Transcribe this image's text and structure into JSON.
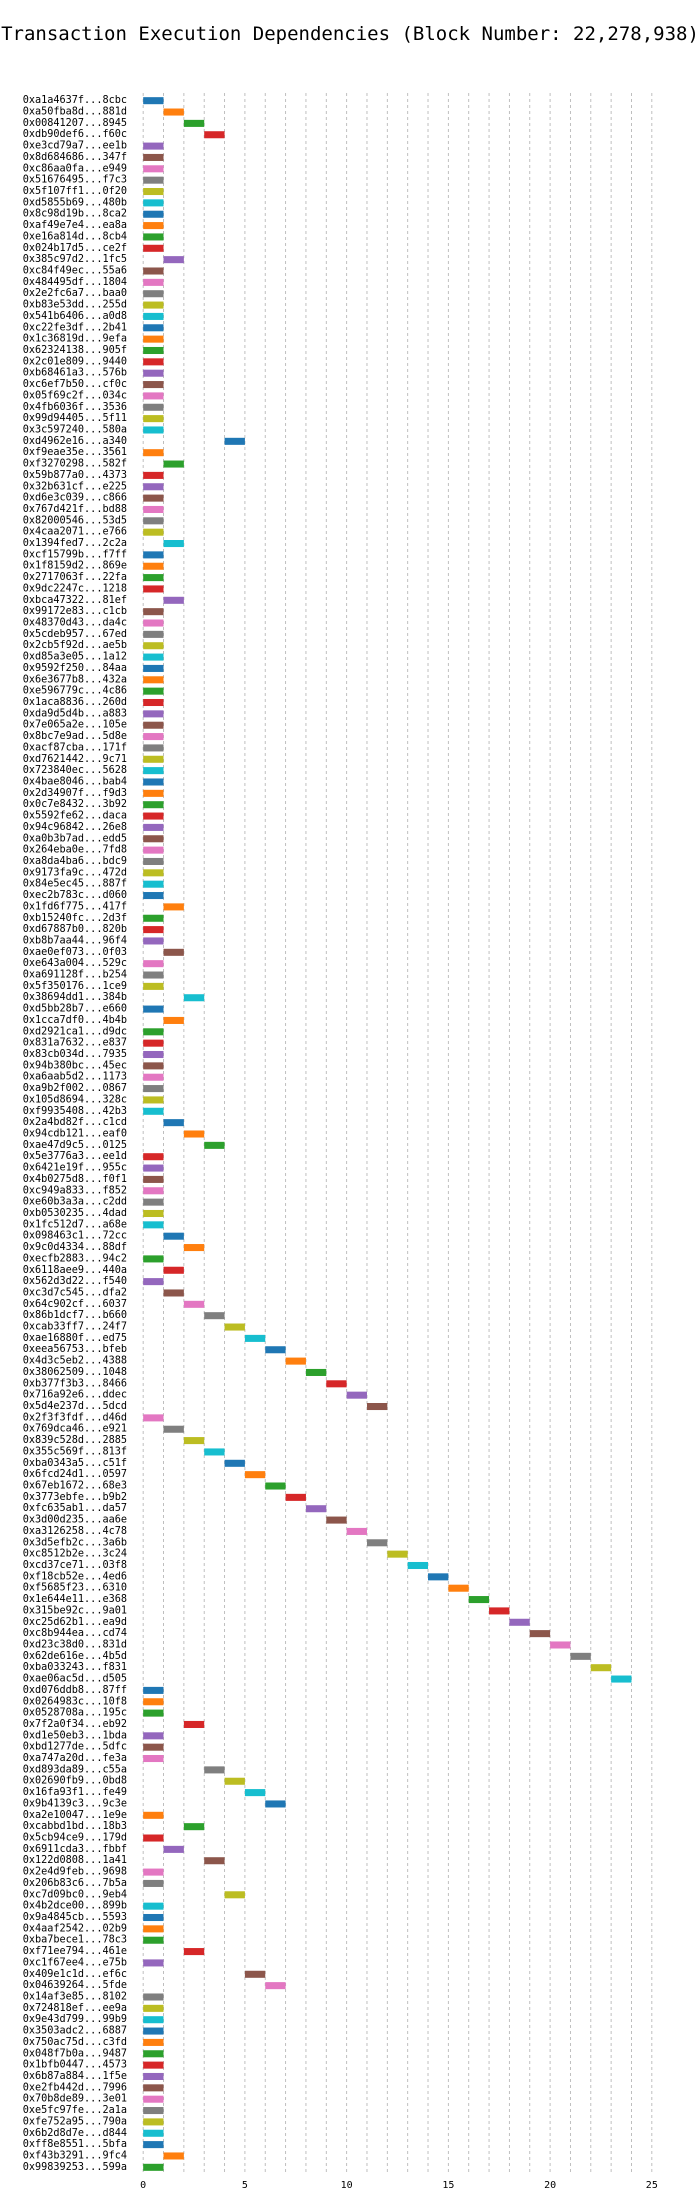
{
  "chart_data": {
    "type": "bar",
    "subtype": "horizontal-gantt",
    "title": "Transaction Execution Dependencies (Block Number: 22,278,938)",
    "xlabel": "",
    "ylabel": "",
    "xlim": [
      -0.5,
      25.5
    ],
    "xticks": [
      0,
      5,
      10,
      15,
      20,
      25
    ],
    "grid": true,
    "bar_duration": 1,
    "palette": [
      "#1f77b4",
      "#ff7f0e",
      "#2ca02c",
      "#d62728",
      "#9467bd",
      "#8c564b",
      "#e377c2",
      "#7f7f7f",
      "#bcbd22",
      "#17becf"
    ],
    "transactions": [
      {
        "label": "0xa1a4637f...8cbc",
        "start": 0
      },
      {
        "label": "0xa50fba8d...881d",
        "start": 1
      },
      {
        "label": "0x00841207...8945",
        "start": 2
      },
      {
        "label": "0xdb90def6...f60c",
        "start": 3
      },
      {
        "label": "0xe3cd79a7...ee1b",
        "start": 0
      },
      {
        "label": "0x8d684686...347f",
        "start": 0
      },
      {
        "label": "0xc86aa0fa...e949",
        "start": 0
      },
      {
        "label": "0x51676495...f7c3",
        "start": 0
      },
      {
        "label": "0x5f107ff1...0f20",
        "start": 0
      },
      {
        "label": "0xd5855b69...480b",
        "start": 0
      },
      {
        "label": "0x8c98d19b...8ca2",
        "start": 0
      },
      {
        "label": "0xaf49e7e4...ea8a",
        "start": 0
      },
      {
        "label": "0xe16a814d...8cb4",
        "start": 0
      },
      {
        "label": "0x024b17d5...ce2f",
        "start": 0
      },
      {
        "label": "0x385c97d2...1fc5",
        "start": 1
      },
      {
        "label": "0xc84f49ec...55a6",
        "start": 0
      },
      {
        "label": "0x484495df...1804",
        "start": 0
      },
      {
        "label": "0x2e2fc6a7...baa0",
        "start": 0
      },
      {
        "label": "0xb83e53dd...255d",
        "start": 0
      },
      {
        "label": "0x541b6406...a0d8",
        "start": 0
      },
      {
        "label": "0xc22fe3df...2b41",
        "start": 0
      },
      {
        "label": "0x1c36819d...9efa",
        "start": 0
      },
      {
        "label": "0x62324138...905f",
        "start": 0
      },
      {
        "label": "0x2c01e809...9440",
        "start": 0
      },
      {
        "label": "0xb68461a3...576b",
        "start": 0
      },
      {
        "label": "0xc6ef7b50...cf0c",
        "start": 0
      },
      {
        "label": "0x05f69c2f...034c",
        "start": 0
      },
      {
        "label": "0x4fb6036f...3536",
        "start": 0
      },
      {
        "label": "0x99d94405...5f11",
        "start": 0
      },
      {
        "label": "0x3c597240...580a",
        "start": 0
      },
      {
        "label": "0xd4962e16...a340",
        "start": 4
      },
      {
        "label": "0xf9eae35e...3561",
        "start": 0
      },
      {
        "label": "0xf3270298...582f",
        "start": 1
      },
      {
        "label": "0x59b877a0...4373",
        "start": 0
      },
      {
        "label": "0x32b631cf...e225",
        "start": 0
      },
      {
        "label": "0xd6e3c039...c866",
        "start": 0
      },
      {
        "label": "0x767d421f...bd88",
        "start": 0
      },
      {
        "label": "0x82000546...53d5",
        "start": 0
      },
      {
        "label": "0x4caa2071...e766",
        "start": 0
      },
      {
        "label": "0x1394fed7...2c2a",
        "start": 1
      },
      {
        "label": "0xcf15799b...f7ff",
        "start": 0
      },
      {
        "label": "0x1f8159d2...869e",
        "start": 0
      },
      {
        "label": "0x2717063f...22fa",
        "start": 0
      },
      {
        "label": "0x9dc2247c...1218",
        "start": 0
      },
      {
        "label": "0xbca47322...81ef",
        "start": 1
      },
      {
        "label": "0x99172e83...c1cb",
        "start": 0
      },
      {
        "label": "0x48370d43...da4c",
        "start": 0
      },
      {
        "label": "0x5cdeb957...67ed",
        "start": 0
      },
      {
        "label": "0x2cb5f92d...ae5b",
        "start": 0
      },
      {
        "label": "0xd85a3e05...1a12",
        "start": 0
      },
      {
        "label": "0x9592f250...84aa",
        "start": 0
      },
      {
        "label": "0x6e3677b8...432a",
        "start": 0
      },
      {
        "label": "0xe596779c...4c86",
        "start": 0
      },
      {
        "label": "0x1aca8836...260d",
        "start": 0
      },
      {
        "label": "0xda9d5d4b...a883",
        "start": 0
      },
      {
        "label": "0x7e065a2e...105e",
        "start": 0
      },
      {
        "label": "0x8bc7e9ad...5d8e",
        "start": 0
      },
      {
        "label": "0xacf87cba...171f",
        "start": 0
      },
      {
        "label": "0xd7621442...9c71",
        "start": 0
      },
      {
        "label": "0x723840ec...5628",
        "start": 0
      },
      {
        "label": "0x4bae8046...bab4",
        "start": 0
      },
      {
        "label": "0x2d34907f...f9d3",
        "start": 0
      },
      {
        "label": "0x0c7e8432...3b92",
        "start": 0
      },
      {
        "label": "0x5592fe62...daca",
        "start": 0
      },
      {
        "label": "0x94c96842...26e8",
        "start": 0
      },
      {
        "label": "0xa0b3b7ad...edd5",
        "start": 0
      },
      {
        "label": "0x264eba0e...7fd8",
        "start": 0
      },
      {
        "label": "0xa8da4ba6...bdc9",
        "start": 0
      },
      {
        "label": "0x9173fa9c...472d",
        "start": 0
      },
      {
        "label": "0x84e5ec45...887f",
        "start": 0
      },
      {
        "label": "0xec2b783c...d060",
        "start": 0
      },
      {
        "label": "0x1fd6f775...417f",
        "start": 1
      },
      {
        "label": "0xb15240fc...2d3f",
        "start": 0
      },
      {
        "label": "0xd67887b0...820b",
        "start": 0
      },
      {
        "label": "0xb8b7aa44...96f4",
        "start": 0
      },
      {
        "label": "0xae0ef073...0f03",
        "start": 1
      },
      {
        "label": "0xe643a004...529c",
        "start": 0
      },
      {
        "label": "0xa691128f...b254",
        "start": 0
      },
      {
        "label": "0x5f350176...1ce9",
        "start": 0
      },
      {
        "label": "0x38694dd1...384b",
        "start": 2
      },
      {
        "label": "0xd5bb28b7...e660",
        "start": 0
      },
      {
        "label": "0x1cca7df0...4b4b",
        "start": 1
      },
      {
        "label": "0xd2921ca1...d9dc",
        "start": 0
      },
      {
        "label": "0x831a7632...e837",
        "start": 0
      },
      {
        "label": "0x83cb034d...7935",
        "start": 0
      },
      {
        "label": "0x94b380bc...45ec",
        "start": 0
      },
      {
        "label": "0xa6aab5d2...1173",
        "start": 0
      },
      {
        "label": "0xa9b2f002...0867",
        "start": 0
      },
      {
        "label": "0x105d8694...328c",
        "start": 0
      },
      {
        "label": "0xf9935408...42b3",
        "start": 0
      },
      {
        "label": "0x2a4bd82f...c1cd",
        "start": 1
      },
      {
        "label": "0x94cdb121...eaf0",
        "start": 2
      },
      {
        "label": "0xae47d9c5...0125",
        "start": 3
      },
      {
        "label": "0x5e3776a3...ee1d",
        "start": 0
      },
      {
        "label": "0x6421e19f...955c",
        "start": 0
      },
      {
        "label": "0x4b0275d8...f0f1",
        "start": 0
      },
      {
        "label": "0xc949a833...f852",
        "start": 0
      },
      {
        "label": "0xe60b3a3a...c2dd",
        "start": 0
      },
      {
        "label": "0xb0530235...4dad",
        "start": 0
      },
      {
        "label": "0x1fc512d7...a68e",
        "start": 0
      },
      {
        "label": "0x098463c1...72cc",
        "start": 1
      },
      {
        "label": "0x9c0d4334...88df",
        "start": 2
      },
      {
        "label": "0xecfb2883...94c2",
        "start": 0
      },
      {
        "label": "0x6118aee9...440a",
        "start": 1
      },
      {
        "label": "0x562d3d22...f540",
        "start": 0
      },
      {
        "label": "0xc3d7c545...dfa2",
        "start": 1
      },
      {
        "label": "0x64c902cf...6037",
        "start": 2
      },
      {
        "label": "0x86b1dcf7...b660",
        "start": 3
      },
      {
        "label": "0xcab33ff7...24f7",
        "start": 4
      },
      {
        "label": "0xae16880f...ed75",
        "start": 5
      },
      {
        "label": "0xeea56753...bfeb",
        "start": 6
      },
      {
        "label": "0x4d3c5eb2...4388",
        "start": 7
      },
      {
        "label": "0x38062509...1048",
        "start": 8
      },
      {
        "label": "0xb377f3b3...8466",
        "start": 9
      },
      {
        "label": "0x716a92e6...ddec",
        "start": 10
      },
      {
        "label": "0x5d4e237d...5dcd",
        "start": 11
      },
      {
        "label": "0x2f3f3fdf...d46d",
        "start": 0
      },
      {
        "label": "0x769dca46...e921",
        "start": 1
      },
      {
        "label": "0x839c528d...2885",
        "start": 2
      },
      {
        "label": "0x355c569f...813f",
        "start": 3
      },
      {
        "label": "0xba0343a5...c51f",
        "start": 4
      },
      {
        "label": "0x6fcd24d1...0597",
        "start": 5
      },
      {
        "label": "0x67eb1672...68e3",
        "start": 6
      },
      {
        "label": "0x3773ebfe...b9b2",
        "start": 7
      },
      {
        "label": "0xfc635ab1...da57",
        "start": 8
      },
      {
        "label": "0x3d00d235...aa6e",
        "start": 9
      },
      {
        "label": "0xa3126258...4c78",
        "start": 10
      },
      {
        "label": "0x3d5efb2c...3a6b",
        "start": 11
      },
      {
        "label": "0xc8512b2e...3c24",
        "start": 12
      },
      {
        "label": "0xcd37ce71...03f8",
        "start": 13
      },
      {
        "label": "0xf18cb52e...4ed6",
        "start": 14
      },
      {
        "label": "0xf5685f23...6310",
        "start": 15
      },
      {
        "label": "0x1e644e11...e368",
        "start": 16
      },
      {
        "label": "0x315be92c...9a01",
        "start": 17
      },
      {
        "label": "0xc25d62b1...ea9d",
        "start": 18
      },
      {
        "label": "0xc8b944ea...cd74",
        "start": 19
      },
      {
        "label": "0xd23c38d0...831d",
        "start": 20
      },
      {
        "label": "0x62de616e...4b5d",
        "start": 21
      },
      {
        "label": "0xba033243...f831",
        "start": 22
      },
      {
        "label": "0xae06ac5d...d505",
        "start": 23
      },
      {
        "label": "0xd076ddb8...87ff",
        "start": 0
      },
      {
        "label": "0x0264983c...10f8",
        "start": 0
      },
      {
        "label": "0x0528708a...195c",
        "start": 0
      },
      {
        "label": "0x7f2a0f34...eb92",
        "start": 2
      },
      {
        "label": "0xd1e50eb3...1bda",
        "start": 0
      },
      {
        "label": "0xbd1277de...5dfc",
        "start": 0
      },
      {
        "label": "0xa747a20d...fe3a",
        "start": 0
      },
      {
        "label": "0xd893da89...c55a",
        "start": 3
      },
      {
        "label": "0x02690fb9...0bd8",
        "start": 4
      },
      {
        "label": "0x16fa93f1...fe49",
        "start": 5
      },
      {
        "label": "0x9b4139c3...9c3e",
        "start": 6
      },
      {
        "label": "0xa2e10047...1e9e",
        "start": 0
      },
      {
        "label": "0xcabbd1bd...18b3",
        "start": 2
      },
      {
        "label": "0x5cb94ce9...179d",
        "start": 0
      },
      {
        "label": "0x6911cda3...fbbf",
        "start": 1
      },
      {
        "label": "0x122d0808...1a41",
        "start": 3
      },
      {
        "label": "0x2e4d9feb...9698",
        "start": 0
      },
      {
        "label": "0x206b83c6...7b5a",
        "start": 0
      },
      {
        "label": "0xc7d09bc0...9eb4",
        "start": 4
      },
      {
        "label": "0x4b2dce00...899b",
        "start": 0
      },
      {
        "label": "0x9a4845cb...5593",
        "start": 0
      },
      {
        "label": "0x4aaf2542...02b9",
        "start": 0
      },
      {
        "label": "0xba7bece1...78c3",
        "start": 0
      },
      {
        "label": "0xf71ee794...461e",
        "start": 2
      },
      {
        "label": "0xc1f67ee4...e75b",
        "start": 0
      },
      {
        "label": "0x409e1c1d...ef6c",
        "start": 5
      },
      {
        "label": "0x04639264...5fde",
        "start": 6
      },
      {
        "label": "0x14af3e85...8102",
        "start": 0
      },
      {
        "label": "0x724818ef...ee9a",
        "start": 0
      },
      {
        "label": "0x9e43d799...99b9",
        "start": 0
      },
      {
        "label": "0x3503adc2...6887",
        "start": 0
      },
      {
        "label": "0x750ac75d...c3fd",
        "start": 0
      },
      {
        "label": "0x048f7b0a...9487",
        "start": 0
      },
      {
        "label": "0x1bfb0447...4573",
        "start": 0
      },
      {
        "label": "0x6b87a884...1f5e",
        "start": 0
      },
      {
        "label": "0xe2fb442d...7996",
        "start": 0
      },
      {
        "label": "0x70b8de89...3e01",
        "start": 0
      },
      {
        "label": "0xe5fc97fe...2a1a",
        "start": 0
      },
      {
        "label": "0xfe752a95...790a",
        "start": 0
      },
      {
        "label": "0x6b2d8d7e...d844",
        "start": 0
      },
      {
        "label": "0xff8e8551...5bfa",
        "start": 0
      },
      {
        "label": "0xf43b3291...9fc4",
        "start": 1
      },
      {
        "label": "0x99839253...599a",
        "start": 0
      }
    ]
  }
}
